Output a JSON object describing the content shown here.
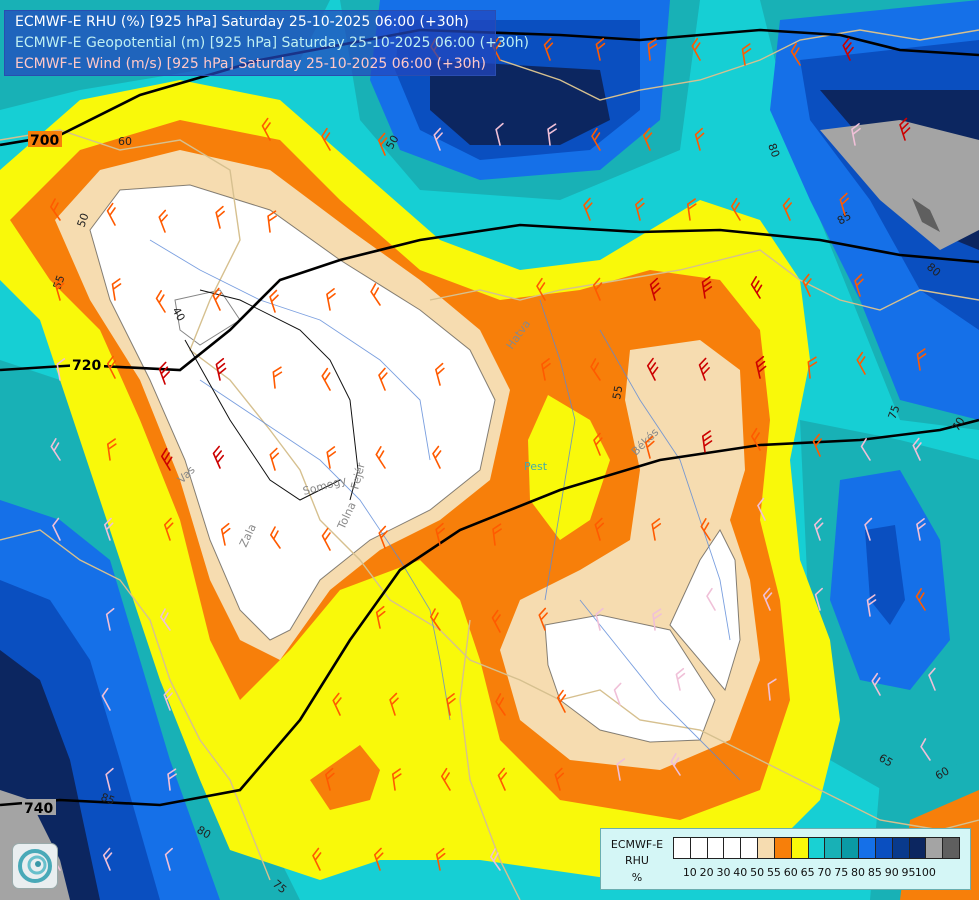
{
  "titles": {
    "rhu": "ECMWF-E RHU (%) [925 hPa] Saturday 25-10-2025 06:00 (+30h)",
    "geo": "ECMWF-E Geopotential (m) [925 hPa] Saturday 25-10-2025 06:00 (+30h)",
    "wind": "ECMWF-E Wind (m/s) [925 hPa] Saturday 25-10-2025 06:00 (+30h)"
  },
  "legend": {
    "label1": "ECMWF-E",
    "label2": "RHU",
    "label3": "%",
    "ticks": [
      "10",
      "20",
      "30",
      "40",
      "50",
      "55",
      "60",
      "65",
      "70",
      "75",
      "80",
      "85",
      "90",
      "95",
      "100"
    ],
    "colors": [
      "#ffffff",
      "#ffffff",
      "#ffffff",
      "#ffffff",
      "#ffffff",
      "#f6dcb0",
      "#f77f0a",
      "#f9f90a",
      "#19d1d3",
      "#18b1b6",
      "#0a9aa5",
      "#1570e8",
      "#0a4fc0",
      "#093a8c",
      "#0c2660",
      "#a4a4a4",
      "#5f5f5f"
    ]
  },
  "isobars": {
    "l700": "700",
    "l720": "720",
    "l740": "740"
  },
  "contour_labels": [
    "60",
    "50",
    "55",
    "40",
    "50",
    "80",
    "85",
    "80",
    "75",
    "70",
    "55",
    "65",
    "60",
    "85",
    "80",
    "75"
  ],
  "place_labels": {
    "pest": "Pest",
    "hatvan": "Hatva",
    "bekes": "Békés",
    "zala": "Zala",
    "tolna": "Tolna",
    "somogy": "Somogy",
    "fejer": "Fejér",
    "vas": "Vas"
  },
  "colors": {
    "white": "#ffffff",
    "beige": "#f6dcb0",
    "orange": "#f77f0a",
    "yellow": "#f9f90a",
    "cyan": "#19d1d3",
    "teal": "#18b1b6",
    "mid_blue": "#1570e8",
    "blue": "#0a4fc0",
    "dark_blue": "#0c2660",
    "gray": "#a4a4a4",
    "wind_orange": "#ff5a00",
    "wind_red": "#cc0000",
    "wind_pink": "#f0c0d8"
  }
}
